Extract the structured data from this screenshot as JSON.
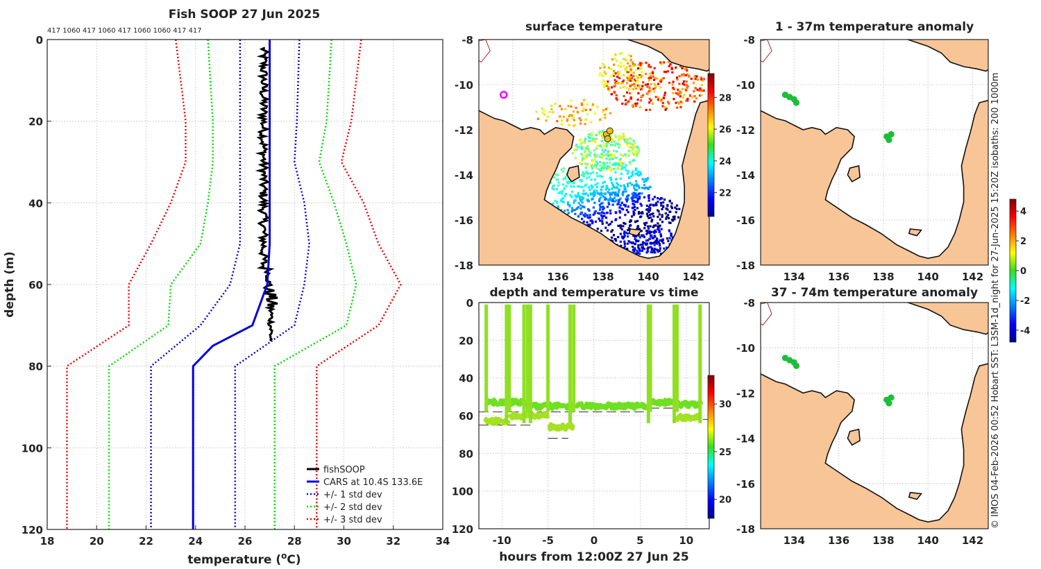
{
  "chart_data": [
    {
      "id": "profile",
      "type": "line",
      "title": "Fish SOOP 27 Jun 2025",
      "xlabel": "temperature (oC)",
      "xlabel_main": "temperature (",
      "xlabel_sup": "o",
      "xlabel_unit": "C)",
      "ylabel": "depth (m)",
      "xlim": [
        18,
        34
      ],
      "ylim": [
        120,
        0
      ],
      "xticks": [
        18,
        20,
        22,
        24,
        26,
        28,
        30,
        32,
        34
      ],
      "yticks": [
        0,
        20,
        40,
        60,
        80,
        100,
        120
      ],
      "top_annotation": "417 1060 417 1060 417 1060 1060 417 417",
      "series": [
        {
          "name": "fishSOOP",
          "color": "#000000",
          "style": "solid",
          "width": 3,
          "points": [
            [
              26.6,
              2
            ],
            [
              26.9,
              5
            ],
            [
              26.6,
              8
            ],
            [
              26.9,
              12
            ],
            [
              26.6,
              16
            ],
            [
              26.9,
              20
            ],
            [
              26.6,
              25
            ],
            [
              26.9,
              30
            ],
            [
              26.6,
              35
            ],
            [
              26.9,
              40
            ],
            [
              26.6,
              45
            ],
            [
              26.9,
              50
            ],
            [
              26.6,
              55
            ],
            [
              26.9,
              58
            ],
            [
              27.0,
              60
            ],
            [
              27.2,
              62
            ],
            [
              27.0,
              66
            ],
            [
              27.1,
              70
            ],
            [
              27.0,
              74
            ]
          ]
        },
        {
          "name": "CARS at 10.4S 133.6E",
          "color": "#0000dd",
          "style": "solid",
          "width": 3,
          "points": [
            [
              27.0,
              0
            ],
            [
              27.0,
              20
            ],
            [
              27.0,
              30
            ],
            [
              27.0,
              40
            ],
            [
              27.0,
              50
            ],
            [
              26.9,
              60
            ],
            [
              26.3,
              70
            ],
            [
              24.7,
              75
            ],
            [
              23.9,
              80
            ],
            [
              23.9,
              100
            ],
            [
              23.9,
              120
            ]
          ]
        },
        {
          "name": "+/- 1 std dev",
          "color": "#0000dd",
          "style": "dotted",
          "width": 2.5,
          "points_lo": [
            [
              25.8,
              0
            ],
            [
              25.8,
              20
            ],
            [
              25.8,
              30
            ],
            [
              25.8,
              40
            ],
            [
              25.8,
              50
            ],
            [
              25.4,
              60
            ],
            [
              24.2,
              70
            ],
            [
              22.2,
              80
            ],
            [
              22.2,
              100
            ],
            [
              22.2,
              120
            ]
          ],
          "points_hi": [
            [
              28.2,
              0
            ],
            [
              28.1,
              20
            ],
            [
              28.0,
              30
            ],
            [
              28.4,
              40
            ],
            [
              28.6,
              50
            ],
            [
              28.4,
              60
            ],
            [
              28.0,
              70
            ],
            [
              25.6,
              80
            ],
            [
              25.6,
              100
            ],
            [
              25.6,
              120
            ]
          ]
        },
        {
          "name": "+/- 2 std dev",
          "color": "#00dd00",
          "style": "dotted",
          "width": 2.5,
          "points_lo": [
            [
              24.5,
              0
            ],
            [
              24.7,
              20
            ],
            [
              24.7,
              30
            ],
            [
              24.5,
              40
            ],
            [
              24.2,
              50
            ],
            [
              23.0,
              60
            ],
            [
              22.9,
              70
            ],
            [
              20.5,
              80
            ],
            [
              20.5,
              100
            ],
            [
              20.5,
              120
            ]
          ],
          "points_hi": [
            [
              29.5,
              0
            ],
            [
              29.3,
              20
            ],
            [
              29.0,
              30
            ],
            [
              29.6,
              40
            ],
            [
              30.1,
              50
            ],
            [
              30.5,
              60
            ],
            [
              30.1,
              70
            ],
            [
              27.2,
              80
            ],
            [
              27.2,
              100
            ],
            [
              27.2,
              120
            ]
          ]
        },
        {
          "name": "+/- 3 std dev",
          "color": "#ee0000",
          "style": "dotted",
          "width": 2.5,
          "points_lo": [
            [
              23.2,
              0
            ],
            [
              23.6,
              20
            ],
            [
              23.6,
              30
            ],
            [
              23.0,
              40
            ],
            [
              22.2,
              50
            ],
            [
              21.3,
              60
            ],
            [
              21.3,
              70
            ],
            [
              18.8,
              80
            ],
            [
              18.8,
              100
            ],
            [
              18.8,
              120
            ]
          ],
          "points_hi": [
            [
              30.7,
              0
            ],
            [
              30.3,
              20
            ],
            [
              29.9,
              30
            ],
            [
              30.8,
              40
            ],
            [
              31.4,
              50
            ],
            [
              32.3,
              60
            ],
            [
              31.4,
              70
            ],
            [
              28.9,
              80
            ],
            [
              28.9,
              100
            ],
            [
              28.9,
              120
            ]
          ]
        }
      ],
      "legend": [
        "fishSOOP",
        "CARS at 10.4S 133.6E",
        "+/- 1 std dev",
        "+/- 2 std dev",
        "+/- 3 std dev"
      ],
      "legend_position": "bottom-right"
    },
    {
      "id": "sst_map",
      "type": "heatmap",
      "title": "surface temperature",
      "xlim": [
        132.5,
        142.7
      ],
      "ylim": [
        -18,
        -8
      ],
      "xticks": [
        134,
        136,
        138,
        140,
        142
      ],
      "yticks": [
        -8,
        -10,
        -12,
        -14,
        -16,
        -18
      ],
      "colorbar": {
        "ticks": [
          22,
          24,
          26,
          28
        ],
        "range": [
          20.5,
          29.5
        ]
      },
      "markers": [
        {
          "lon": 133.6,
          "lat": -10.45,
          "color": "#ff00ff",
          "kind": "ring"
        },
        {
          "lon": 138.15,
          "lat": -12.2,
          "color": "#e8c020",
          "kind": "dot"
        },
        {
          "lon": 138.3,
          "lat": -12.05,
          "color": "#e8c020",
          "kind": "dot"
        },
        {
          "lon": 138.2,
          "lat": -12.4,
          "color": "#e8c020",
          "kind": "dot"
        }
      ]
    },
    {
      "id": "time_depth",
      "type": "scatter",
      "title": "depth and temperature vs time",
      "xlabel": "hours from 12:00Z 27 Jun 25",
      "xlim": [
        -12.5,
        12.5
      ],
      "ylim": [
        120,
        0
      ],
      "xticks": [
        -10,
        -5,
        0,
        5,
        10
      ],
      "yticks": [
        0,
        20,
        40,
        60,
        80,
        100,
        120
      ],
      "colorbar": {
        "ticks": [
          20,
          25,
          30
        ],
        "range": [
          18,
          33
        ]
      },
      "dives": [
        {
          "t0": -11.8,
          "t1": -9.2,
          "depth": 53,
          "color": "#6fe020"
        },
        {
          "t0": -9.2,
          "t1": -7.6,
          "depth": 53,
          "color": "#6fe020"
        },
        {
          "t0": -7.6,
          "t1": -6.7,
          "depth": 54,
          "color": "#6fe020"
        },
        {
          "t0": -6.7,
          "t1": -2.0,
          "depth": 55,
          "color": "#6fe020"
        },
        {
          "t0": -2.0,
          "t1": 5.8,
          "depth": 55,
          "color": "#6fe020"
        },
        {
          "t0": 6.1,
          "t1": 8.6,
          "depth": 53,
          "color": "#6fe020"
        },
        {
          "t0": 8.9,
          "t1": 11.7,
          "depth": 54,
          "color": "#6fe020"
        },
        {
          "t0": -11.8,
          "t1": -9.2,
          "depth": 63,
          "color": "#a6e024"
        },
        {
          "t0": -9.2,
          "t1": -5.0,
          "depth": 60,
          "color": "#a6e024"
        },
        {
          "t0": -5.0,
          "t1": -2.2,
          "depth": 66,
          "color": "#a6e024"
        },
        {
          "t0": 8.9,
          "t1": 11.5,
          "depth": 61,
          "color": "#a6e024"
        }
      ],
      "surfacings": [
        -11.7,
        -9.5,
        -9.2,
        -7.6,
        -7.2,
        -6.9,
        -5.0,
        -2.6,
        -2.2,
        5.9,
        6.1,
        8.7,
        9.0,
        11.5
      ],
      "reference_depths": [
        {
          "t0": -12.5,
          "t1": -9.2,
          "depth": 58
        },
        {
          "t0": -9.2,
          "t1": 6.0,
          "depth": 58
        },
        {
          "t0": 6.0,
          "t1": 8.8,
          "depth": 56
        },
        {
          "t0": 8.8,
          "t1": 12.5,
          "depth": 62
        },
        {
          "t0": -12.5,
          "t1": -6.5,
          "depth": 65
        },
        {
          "t0": -5.0,
          "t1": -2.8,
          "depth": 72
        }
      ]
    },
    {
      "id": "anom1",
      "type": "scatter",
      "title": "1 - 37m temperature anomaly",
      "xlim": [
        132.5,
        142.7
      ],
      "ylim": [
        -18,
        -8
      ],
      "xticks": [
        134,
        136,
        138,
        140,
        142
      ],
      "yticks": [
        -8,
        -10,
        -12,
        -14,
        -16,
        -18
      ],
      "points": [
        {
          "lon": 133.6,
          "lat": -10.45,
          "value": 0.5
        },
        {
          "lon": 133.8,
          "lat": -10.55,
          "value": 0.5
        },
        {
          "lon": 134.0,
          "lat": -10.65,
          "value": 0.5
        },
        {
          "lon": 134.1,
          "lat": -10.8,
          "value": 0.5
        },
        {
          "lon": 138.15,
          "lat": -12.3,
          "value": 0.5
        },
        {
          "lon": 138.35,
          "lat": -12.2,
          "value": 0.5
        },
        {
          "lon": 138.25,
          "lat": -12.45,
          "value": 0.5
        }
      ]
    },
    {
      "id": "anom2",
      "type": "scatter",
      "title": "37 - 74m temperature anomaly",
      "xlim": [
        132.5,
        142.7
      ],
      "ylim": [
        -18,
        -8
      ],
      "xticks": [
        134,
        136,
        138,
        140,
        142
      ],
      "yticks": [
        -8,
        -10,
        -12,
        -14,
        -16,
        -18
      ],
      "points": [
        {
          "lon": 133.6,
          "lat": -10.45,
          "value": 0.5
        },
        {
          "lon": 133.8,
          "lat": -10.55,
          "value": 0.5
        },
        {
          "lon": 134.0,
          "lat": -10.65,
          "value": 0.5
        },
        {
          "lon": 134.1,
          "lat": -10.8,
          "value": 0.5
        },
        {
          "lon": 138.15,
          "lat": -12.3,
          "value": 0.5
        },
        {
          "lon": 138.35,
          "lat": -12.2,
          "value": 0.5
        },
        {
          "lon": 138.25,
          "lat": -12.45,
          "value": 0.5
        }
      ]
    }
  ],
  "anomaly_colorbar": {
    "ticks": [
      4,
      2,
      0,
      -2,
      -4
    ],
    "range": [
      -4.8,
      4.8
    ]
  },
  "credit": "© IMOS 04-Feb-2026 00:52 Hobart SST: L3SM-1d_night for 27-Jun-2025 15:20Z isobaths: 200  1000m",
  "colors": {
    "land": "#f8c597",
    "coast": "#111111"
  }
}
